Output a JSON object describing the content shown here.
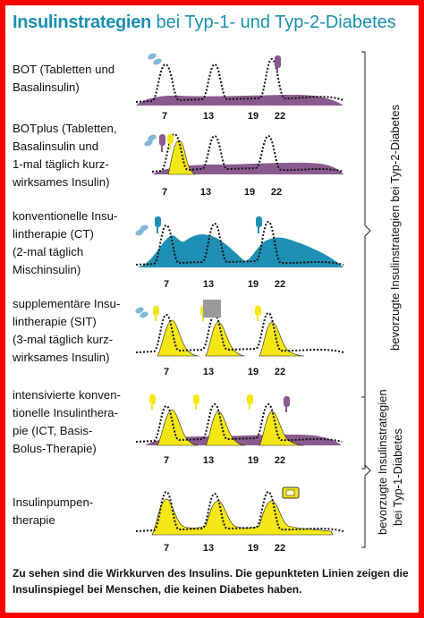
{
  "title": {
    "strong": "Insulinstrategien",
    "rest": " bei Typ-1- und Typ-2-Diabetes"
  },
  "colors": {
    "frame": "#ff0000",
    "title": "#1a8fb0",
    "basal": "#8a5a8f",
    "bolus": "#f5e616",
    "mix": "#1f8fb5",
    "grey": "#9a9a9a"
  },
  "tick_labels": [
    "7",
    "13",
    "19",
    "22"
  ],
  "rows": [
    {
      "label": [
        "BOT (Tabletten und",
        "Basalinsulin)"
      ]
    },
    {
      "label": [
        "BOTplus (Tabletten,",
        "Basalinsulin und",
        "1-mal täglich kurz-",
        "wirksames Insulin)"
      ]
    },
    {
      "label": [
        "konventionelle Insu-",
        "lintherapie (CT)",
        "(2-mal täglich",
        "Mischinsulin)"
      ]
    },
    {
      "label": [
        "supplementäre Insu-",
        "lintherapie (SIT)",
        "(3-mal täglich kurz-",
        "wirksames Insulin)"
      ]
    },
    {
      "label": [
        "intensivierte konven-",
        "tionelle Insulinthera-",
        "pie (ICT, Basis-",
        "Bolus-Therapie)"
      ]
    },
    {
      "label": [
        "Insulinpumpen-",
        "therapie"
      ]
    }
  ],
  "side_labels": {
    "type2": "bevorzugte Insulinstrategien bei Typ-2-Diabetes",
    "type1_line1": "bevorzugte Insulinstrategien",
    "type1_line2": "bei Typ-1-Diabetes"
  },
  "footnote": "Zu sehen sind die Wirkkurven des Insulins. Die gepunkteten Linien zeigen die Insulinspiegel bei Menschen, die keinen Diabetes haben."
}
